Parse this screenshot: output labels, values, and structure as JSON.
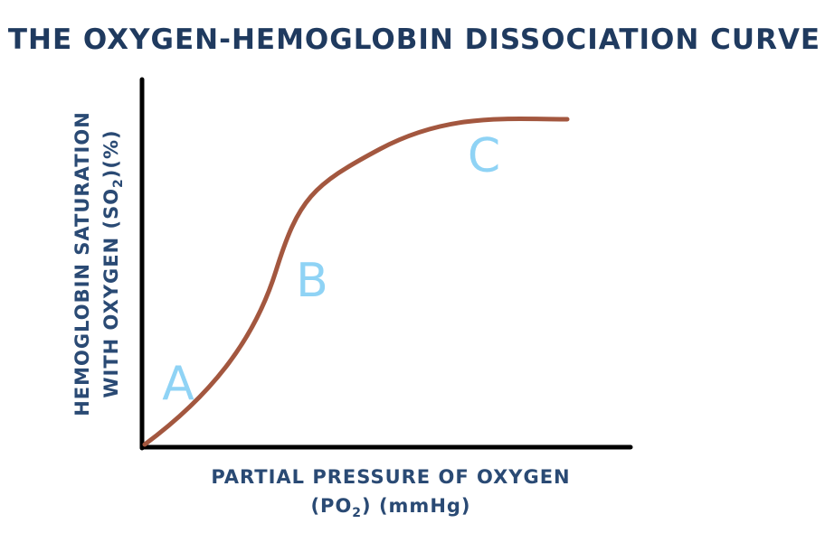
{
  "title": "THE OXYGEN-HEMOGLOBIN DISSOCIATION CURVE",
  "y_axis": {
    "line1": "HEMOGLOBIN SATURATION",
    "line2": [
      "WITH OXYGEN (SO",
      "2",
      ")(%)"
    ]
  },
  "x_axis": {
    "line1": "PARTIAL PRESSURE OF OXYGEN",
    "line2": [
      "(PO",
      "2",
      ") (mmHg)"
    ]
  },
  "regions": [
    "A",
    "B",
    "C"
  ]
}
